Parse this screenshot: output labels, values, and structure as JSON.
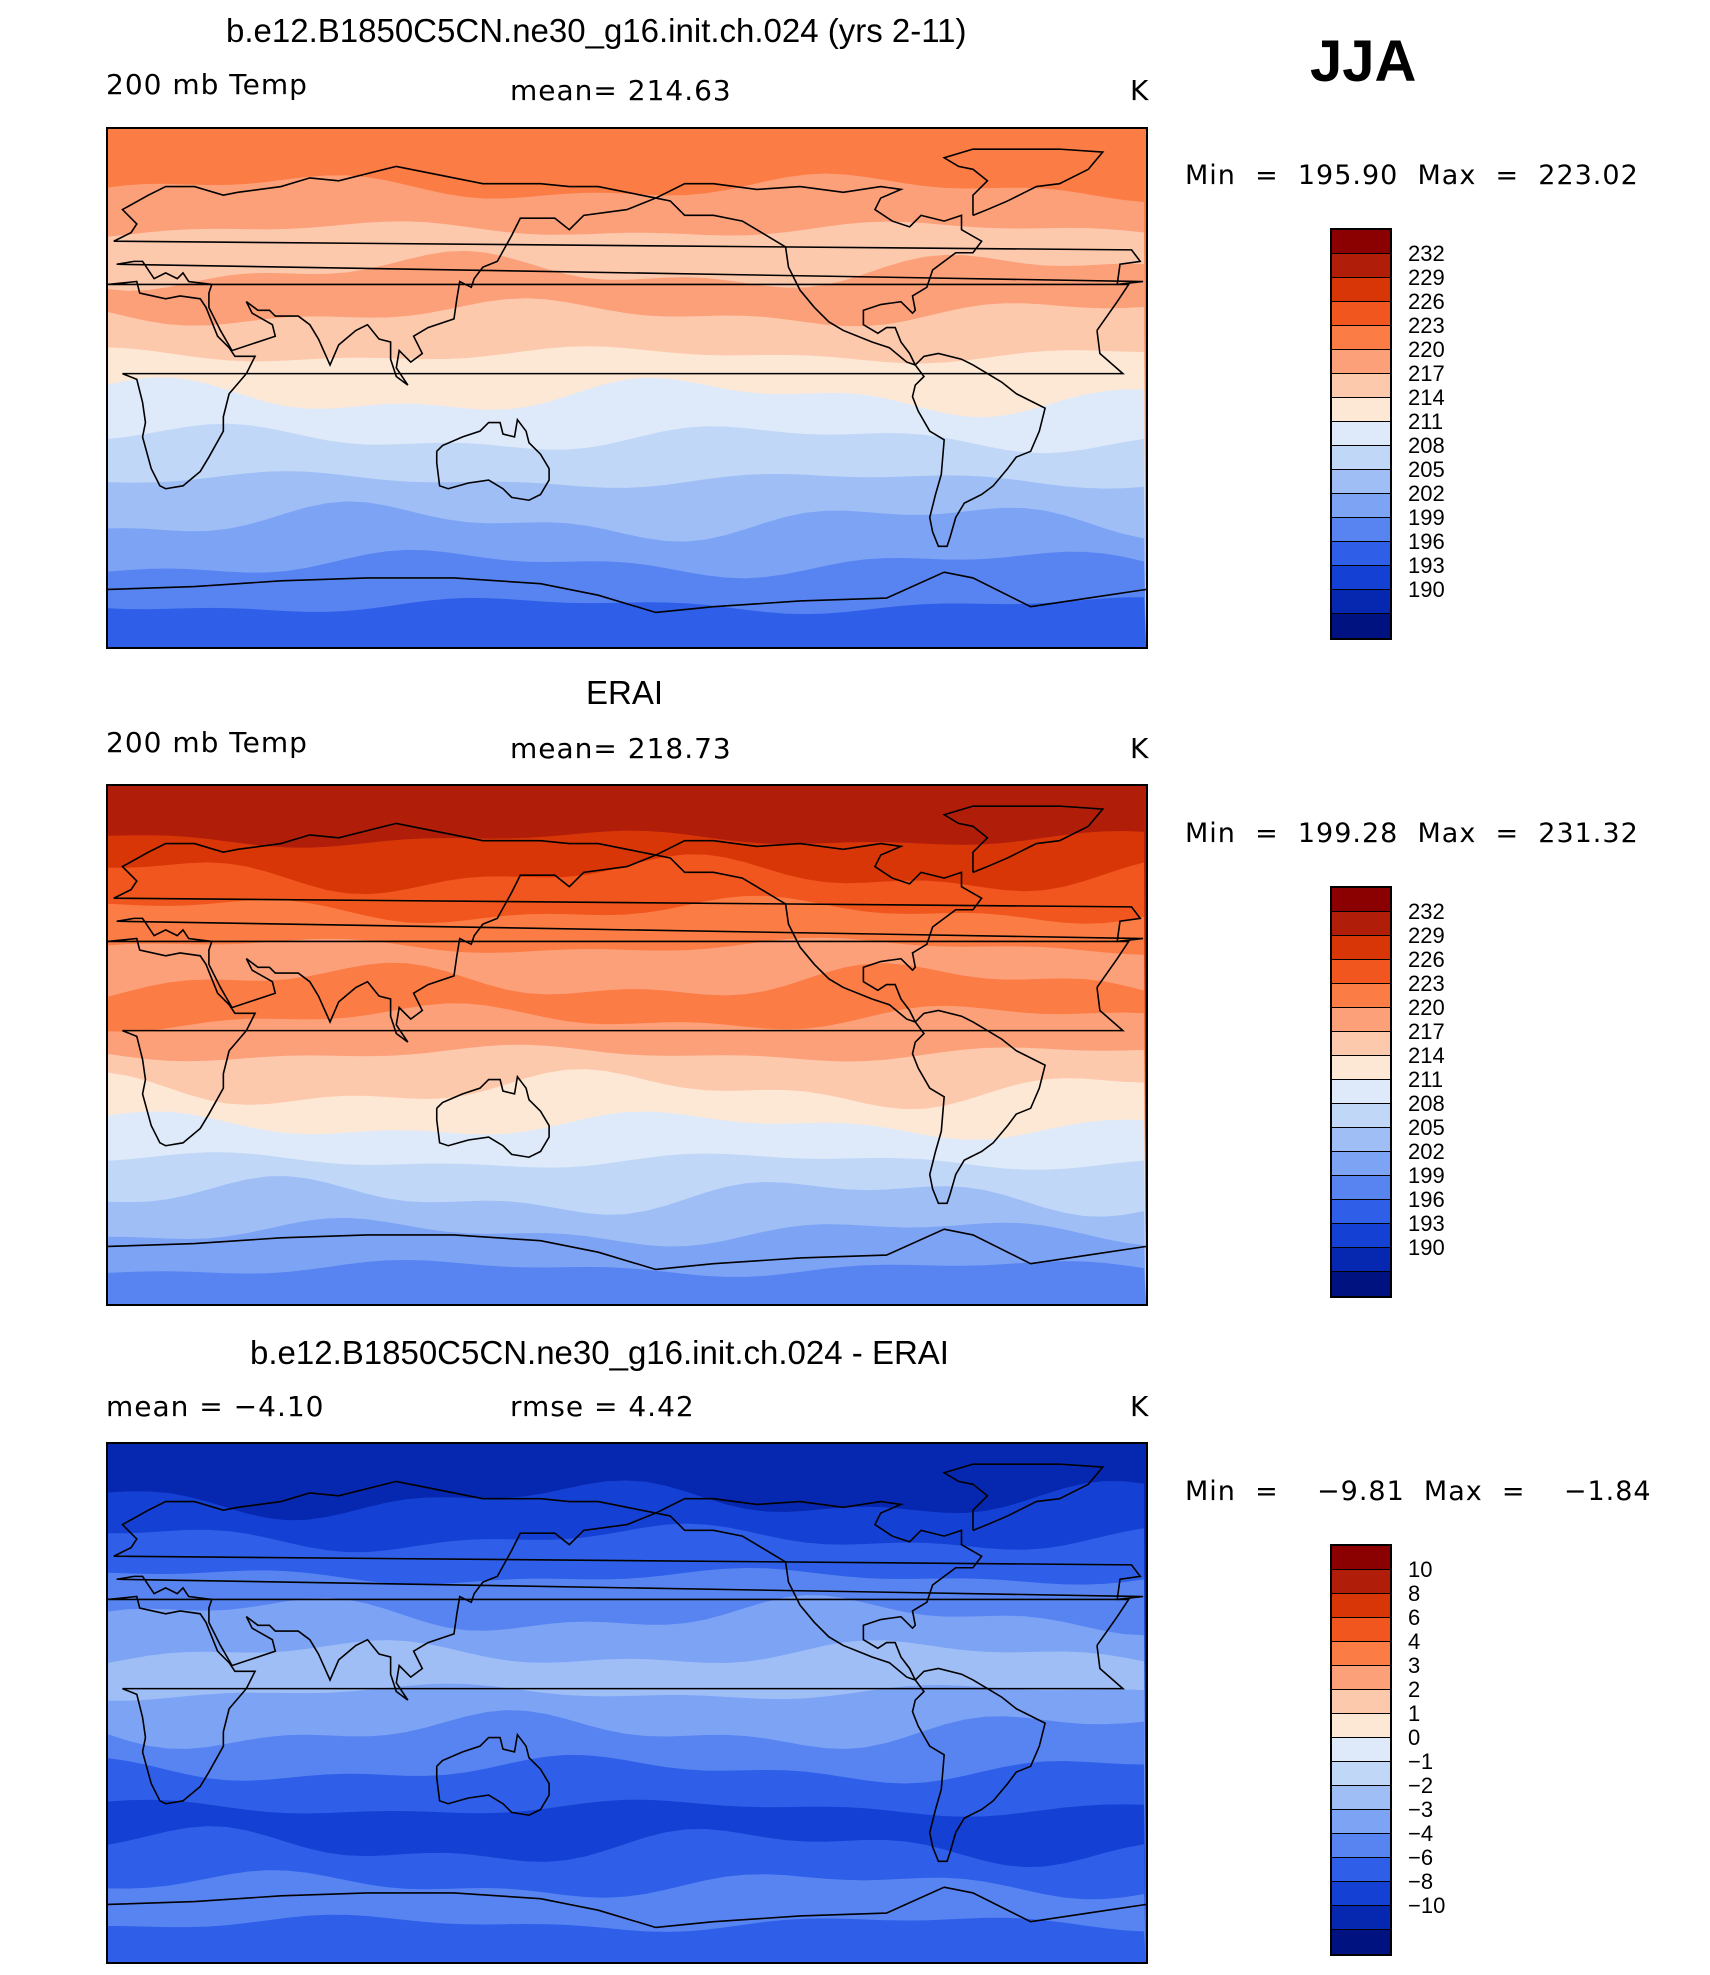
{
  "season": "JJA",
  "panels": [
    {
      "title": "b.e12.B1850C5CN.ne30_g16.init.ch.024 (yrs 2-11)",
      "left": "200 mb Temp",
      "center": "mean=  214.63",
      "right": "K",
      "minmax": "Min  =  195.90  Max  =  223.02",
      "colorbar": {
        "labels": [
          "232",
          "229",
          "226",
          "223",
          "220",
          "217",
          "214",
          "211",
          "208",
          "205",
          "202",
          "199",
          "196",
          "193",
          "190"
        ],
        "colors": [
          "#8b0000",
          "#b01e0a",
          "#d93608",
          "#f0561e",
          "#fb7c45",
          "#fca07a",
          "#fdc9ad",
          "#fde8d6",
          "#deeaf9",
          "#c0d7f8",
          "#9fbef6",
          "#7da3f5",
          "#5884f2",
          "#2f5fe8",
          "#1440d4",
          "#0627b0",
          "#00127f"
        ]
      },
      "map_data": {
        "type": "filled_contour_map",
        "variable": "200 mb Temp",
        "units": "K",
        "mean": 214.63,
        "min": 195.9,
        "max": 223.02,
        "band_colors_south_to_north": [
          "#2f5fe8",
          "#5884f2",
          "#7da3f5",
          "#9fbef6",
          "#c0d7f8",
          "#deeaf9",
          "#fde8d6",
          "#fdc9ad",
          "#fca07a",
          "#fdc9ad",
          "#fca07a",
          "#fb7c45"
        ]
      }
    },
    {
      "title": "ERAI",
      "left": "200 mb Temp",
      "center": "mean=  218.73",
      "right": "K",
      "minmax": "Min  =  199.28  Max  =  231.32",
      "colorbar": {
        "labels": [
          "232",
          "229",
          "226",
          "223",
          "220",
          "217",
          "214",
          "211",
          "208",
          "205",
          "202",
          "199",
          "196",
          "193",
          "190"
        ],
        "colors": [
          "#8b0000",
          "#b01e0a",
          "#d93608",
          "#f0561e",
          "#fb7c45",
          "#fca07a",
          "#fdc9ad",
          "#fde8d6",
          "#deeaf9",
          "#c0d7f8",
          "#9fbef6",
          "#7da3f5",
          "#5884f2",
          "#2f5fe8",
          "#1440d4",
          "#0627b0",
          "#00127f"
        ]
      },
      "map_data": {
        "type": "filled_contour_map",
        "variable": "200 mb Temp",
        "units": "K",
        "mean": 218.73,
        "min": 199.28,
        "max": 231.32,
        "band_colors_south_to_north": [
          "#5884f2",
          "#7da3f5",
          "#9fbef6",
          "#c0d7f8",
          "#deeaf9",
          "#fde8d6",
          "#fdc9ad",
          "#fca07a",
          "#fb7c45",
          "#fca07a",
          "#fb7c45",
          "#f0561e",
          "#d93608",
          "#b01e0a"
        ]
      }
    },
    {
      "title": "b.e12.B1850C5CN.ne30_g16.init.ch.024 - ERAI",
      "left": "mean  =    −4.10",
      "center": "rmse  =     4.42",
      "right": "K",
      "minmax": "Min  =    −9.81  Max  =    −1.84",
      "colorbar": {
        "labels": [
          "10",
          "8",
          "6",
          "4",
          "3",
          "2",
          "1",
          "0",
          "−1",
          "−2",
          "−3",
          "−4",
          "−6",
          "−8",
          "−10"
        ],
        "colors": [
          "#8b0000",
          "#b01e0a",
          "#d93608",
          "#f0561e",
          "#fb7c45",
          "#fca07a",
          "#fdc9ad",
          "#fde8d6",
          "#deeaf9",
          "#c0d7f8",
          "#9fbef6",
          "#7da3f5",
          "#5884f2",
          "#2f5fe8",
          "#1440d4",
          "#0627b0",
          "#00127f"
        ]
      },
      "map_data": {
        "type": "filled_contour_map",
        "variable": "difference",
        "units": "K",
        "mean": -4.1,
        "rmse": 4.42,
        "min": -9.81,
        "max": -1.84,
        "band_colors_south_to_north": [
          "#2f5fe8",
          "#5884f2",
          "#2f5fe8",
          "#1440d4",
          "#2f5fe8",
          "#5884f2",
          "#7da3f5",
          "#9fbef6",
          "#7da3f5",
          "#5884f2",
          "#2f5fe8",
          "#1440d4",
          "#0627b0"
        ]
      }
    }
  ]
}
